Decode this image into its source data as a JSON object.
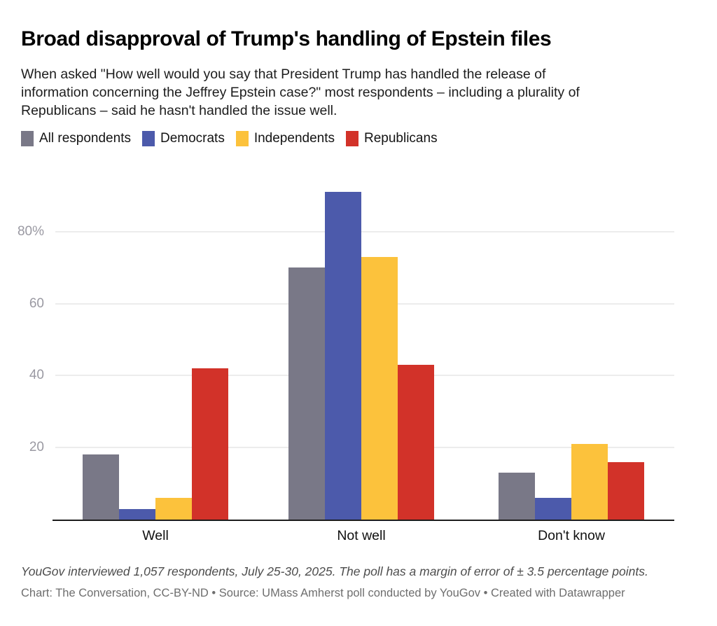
{
  "chart_data": {
    "type": "bar",
    "title": "Broad disapproval of Trump's handling of Epstein files",
    "intro_lines": [
      "When asked \"How well would you say that President Trump has handled the release of",
      "information concerning the Jeffrey Epstein case?\" most respondents – including a plurality of",
      "Republicans – said he hasn't handled the issue well."
    ],
    "categories": [
      "Well",
      "Not well",
      "Don't know"
    ],
    "series": [
      {
        "name": "All respondents",
        "color": "#797887",
        "values": [
          18,
          70,
          13
        ]
      },
      {
        "name": "Democrats",
        "color": "#4c5aab",
        "values": [
          3,
          91,
          6
        ]
      },
      {
        "name": "Independents",
        "color": "#fcc23c",
        "values": [
          6,
          73,
          21
        ]
      },
      {
        "name": "Republicans",
        "color": "#d23229",
        "values": [
          42,
          43,
          16
        ]
      }
    ],
    "xlabel": "",
    "ylabel": "",
    "ylim": [
      0,
      93
    ],
    "yticks": [
      {
        "value": 20,
        "label": "20"
      },
      {
        "value": 40,
        "label": "40"
      },
      {
        "value": 60,
        "label": "60"
      },
      {
        "value": 80,
        "label": "80%"
      }
    ],
    "grid": "horizontal",
    "legend_position": "top",
    "notes": "YouGov interviewed 1,057 respondents, July 25-30, 2025. The poll has a margin of error of ± 3.5 percentage points.",
    "byline": "Chart: The Conversation, CC-BY-ND • Source: UMass Amherst poll conducted by YouGov • Created with Datawrapper"
  }
}
